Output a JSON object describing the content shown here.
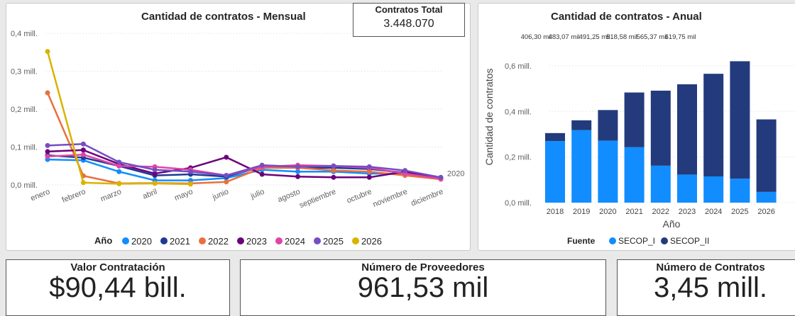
{
  "monthly": {
    "title": "Cantidad de contratos - Mensual",
    "total_card": {
      "label": "Contratos Total",
      "value": "3.448.070"
    }
  },
  "annual": {
    "title": "Cantidad de contratos - Anual"
  },
  "kpis": [
    {
      "label": "Valor Contratación",
      "value": "$90,44 bill."
    },
    {
      "label": "Número de Proveedores",
      "value": "961,53 mil"
    },
    {
      "label": "Número de Contratos",
      "value": "3,45 mill."
    }
  ],
  "chart_data": [
    {
      "type": "line",
      "title": "Cantidad de contratos - Mensual",
      "categories": [
        "enero",
        "febrero",
        "marzo",
        "abril",
        "mayo",
        "junio",
        "julio",
        "agosto",
        "septiembre",
        "octubre",
        "noviembre",
        "diciembre"
      ],
      "y_ticks": [
        "0,0 mill.",
        "0,1 mill.",
        "0,2 mill.",
        "0,3 mill.",
        "0,4 mill."
      ],
      "ylim": [
        0,
        0.4
      ],
      "y_unit": "mill.",
      "grid": true,
      "legend": {
        "title": "Año",
        "position": "bottom"
      },
      "end_label": "2020",
      "series": [
        {
          "name": "2020",
          "color": "#118dff",
          "values": [
            0.067,
            0.065,
            0.035,
            0.012,
            0.012,
            0.018,
            0.04,
            0.035,
            0.035,
            0.03,
            0.03,
            0.018
          ]
        },
        {
          "name": "2021",
          "color": "#1f3a93",
          "values": [
            0.078,
            0.072,
            0.05,
            0.025,
            0.028,
            0.022,
            0.048,
            0.045,
            0.045,
            0.042,
            0.032,
            0.018
          ]
        },
        {
          "name": "2022",
          "color": "#e8703d",
          "values": [
            0.243,
            0.024,
            0.004,
            0.005,
            0.004,
            0.008,
            0.045,
            0.045,
            0.038,
            0.035,
            0.025,
            0.015
          ]
        },
        {
          "name": "2023",
          "color": "#6b007b",
          "values": [
            0.088,
            0.092,
            0.055,
            0.03,
            0.045,
            0.073,
            0.028,
            0.022,
            0.02,
            0.02,
            0.035,
            0.018
          ]
        },
        {
          "name": "2024",
          "color": "#e044a7",
          "values": [
            0.075,
            0.08,
            0.05,
            0.048,
            0.04,
            0.025,
            0.048,
            0.052,
            0.05,
            0.045,
            0.03,
            0.016
          ]
        },
        {
          "name": "2025",
          "color": "#744ec2",
          "values": [
            0.104,
            0.108,
            0.06,
            0.04,
            0.035,
            0.025,
            0.052,
            0.048,
            0.05,
            0.048,
            0.038,
            0.02
          ]
        },
        {
          "name": "2026",
          "color": "#d9b300",
          "values": [
            0.352,
            0.006,
            0.003,
            0.004,
            0.002,
            null,
            null,
            null,
            null,
            null,
            null,
            null
          ]
        }
      ]
    },
    {
      "type": "bar",
      "stacked": true,
      "title": "Cantidad de contratos - Anual",
      "xlabel": "Año",
      "ylabel": "Cantidad de contratos",
      "categories": [
        "2018",
        "2019",
        "2020",
        "2021",
        "2022",
        "2023",
        "2024",
        "2025",
        "2026"
      ],
      "y_ticks": [
        "0,0 mill.",
        "0,2 mill.",
        "0,4 mill.",
        "0,6 mill."
      ],
      "ylim": [
        0,
        0.64
      ],
      "y_unit": "mill.",
      "grid": true,
      "top_labels": [
        "",
        "",
        "406,30 mil",
        "483,07 mil",
        "491,25 mil",
        "518,58 mil",
        "565,37 mil",
        "619,75 mil",
        ""
      ],
      "legend": {
        "title": "Fuente",
        "position": "bottom"
      },
      "series": [
        {
          "name": "SECOP_I",
          "color": "#118dff",
          "values": [
            0.27,
            0.318,
            0.272,
            0.243,
            0.162,
            0.123,
            0.115,
            0.105,
            0.047
          ]
        },
        {
          "name": "SECOP_II",
          "color": "#233b7c",
          "values": [
            0.035,
            0.043,
            0.134,
            0.24,
            0.329,
            0.396,
            0.45,
            0.515,
            0.318
          ]
        }
      ]
    }
  ]
}
